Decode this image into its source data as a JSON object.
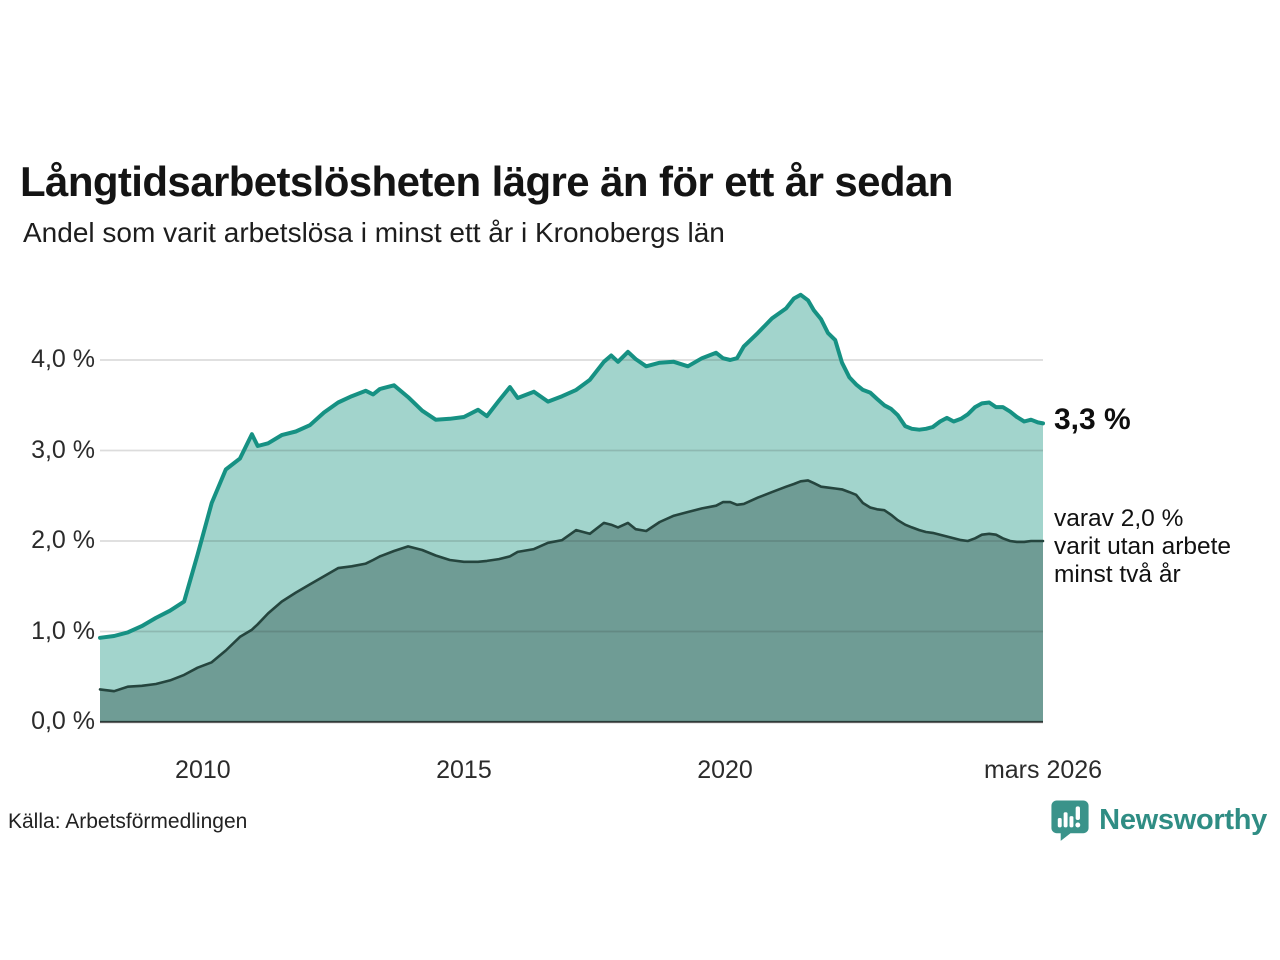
{
  "header": {
    "title": "Långtidsarbetslösheten lägre än för ett år sedan",
    "subtitle": "Andel som varit arbetslösa i minst ett år i Kronobergs län"
  },
  "chart_data": {
    "type": "area",
    "title": "Långtidsarbetslösheten lägre än för ett år sedan",
    "subtitle": "Andel som varit arbetslösa i minst ett år i Kronobergs län",
    "x": [
      2008.03,
      2008.3,
      2008.56,
      2008.83,
      2009.1,
      2009.37,
      2009.64,
      2009.9,
      2010.17,
      2010.44,
      2010.71,
      2010.94,
      2011.05,
      2011.25,
      2011.51,
      2011.78,
      2012.05,
      2012.32,
      2012.59,
      2012.85,
      2013.12,
      2013.26,
      2013.39,
      2013.66,
      2013.93,
      2014.2,
      2014.46,
      2014.73,
      2015.0,
      2015.27,
      2015.44,
      2015.67,
      2015.88,
      2016.03,
      2016.34,
      2016.61,
      2016.88,
      2017.15,
      2017.41,
      2017.68,
      2017.82,
      2017.95,
      2018.14,
      2018.29,
      2018.49,
      2018.75,
      2019.02,
      2019.29,
      2019.56,
      2019.83,
      2019.96,
      2020.1,
      2020.23,
      2020.36,
      2020.63,
      2020.9,
      2021.17,
      2021.32,
      2021.45,
      2021.59,
      2021.7,
      2021.84,
      2021.97,
      2022.11,
      2022.24,
      2022.38,
      2022.51,
      2022.64,
      2022.78,
      2022.91,
      2023.05,
      2023.18,
      2023.31,
      2023.45,
      2023.58,
      2023.72,
      2023.85,
      2023.98,
      2024.12,
      2024.25,
      2024.38,
      2024.52,
      2024.65,
      2024.79,
      2024.92,
      2025.06,
      2025.19,
      2025.32,
      2025.46,
      2025.59,
      2025.73,
      2025.86,
      2025.99,
      2026.09
    ],
    "series": [
      {
        "name": "Andel som varit arbetslösa minst ett år",
        "fill": "#a2d4cc",
        "color": "#169183",
        "width": 4,
        "values": [
          0.93,
          0.95,
          0.99,
          1.06,
          1.15,
          1.23,
          1.33,
          1.85,
          2.42,
          2.79,
          2.91,
          3.18,
          3.05,
          3.08,
          3.17,
          3.21,
          3.28,
          3.42,
          3.53,
          3.6,
          3.66,
          3.62,
          3.68,
          3.72,
          3.59,
          3.44,
          3.34,
          3.35,
          3.37,
          3.45,
          3.38,
          3.55,
          3.7,
          3.58,
          3.65,
          3.54,
          3.6,
          3.67,
          3.78,
          3.98,
          4.05,
          3.98,
          4.09,
          4.01,
          3.93,
          3.97,
          3.98,
          3.93,
          4.02,
          4.08,
          4.02,
          4.0,
          4.02,
          4.15,
          4.3,
          4.46,
          4.57,
          4.68,
          4.72,
          4.66,
          4.55,
          4.45,
          4.3,
          4.22,
          3.97,
          3.81,
          3.73,
          3.67,
          3.64,
          3.57,
          3.5,
          3.46,
          3.39,
          3.27,
          3.24,
          3.23,
          3.24,
          3.26,
          3.32,
          3.36,
          3.32,
          3.35,
          3.4,
          3.48,
          3.52,
          3.53,
          3.48,
          3.48,
          3.43,
          3.37,
          3.32,
          3.34,
          3.31,
          3.3
        ]
      },
      {
        "name": "varav varit utan arbete minst två år",
        "fill": "#6f9c95",
        "color": "#25453e",
        "width": 2.6,
        "values": [
          0.36,
          0.34,
          0.39,
          0.4,
          0.42,
          0.46,
          0.52,
          0.6,
          0.66,
          0.79,
          0.94,
          1.02,
          1.08,
          1.2,
          1.33,
          1.43,
          1.52,
          1.61,
          1.7,
          1.72,
          1.75,
          1.79,
          1.83,
          1.89,
          1.94,
          1.9,
          1.84,
          1.79,
          1.77,
          1.77,
          1.78,
          1.8,
          1.83,
          1.88,
          1.91,
          1.98,
          2.01,
          2.12,
          2.08,
          2.2,
          2.18,
          2.15,
          2.2,
          2.13,
          2.11,
          2.21,
          2.28,
          2.32,
          2.36,
          2.39,
          2.43,
          2.43,
          2.4,
          2.41,
          2.48,
          2.54,
          2.6,
          2.63,
          2.66,
          2.67,
          2.64,
          2.6,
          2.59,
          2.58,
          2.57,
          2.54,
          2.51,
          2.42,
          2.37,
          2.35,
          2.34,
          2.29,
          2.23,
          2.18,
          2.15,
          2.12,
          2.1,
          2.09,
          2.07,
          2.05,
          2.03,
          2.01,
          2.0,
          2.03,
          2.07,
          2.08,
          2.07,
          2.03,
          2.0,
          1.99,
          1.99,
          2.0,
          2.0,
          2.0
        ]
      }
    ],
    "xlim": [
      2008.03,
      2026.09
    ],
    "ylim": [
      0,
      4.95
    ],
    "grid": true,
    "legend_position": "none",
    "yticks": [
      {
        "v": 0,
        "label": "0,0 %"
      },
      {
        "v": 1,
        "label": "1,0 %"
      },
      {
        "v": 2,
        "label": "2,0 %"
      },
      {
        "v": 3,
        "label": "3,0 %"
      },
      {
        "v": 4,
        "label": "4,0 %"
      }
    ],
    "xticks": [
      {
        "v": 2010,
        "label": "2010"
      },
      {
        "v": 2015,
        "label": "2015"
      },
      {
        "v": 2020,
        "label": "2020"
      },
      {
        "v": 2026.09,
        "label": "mars 2026"
      }
    ],
    "annotations": {
      "end_value": "3,3 %",
      "sub_lines": [
        "varav 2,0 %",
        "varit utan arbete",
        "minst två år"
      ]
    }
  },
  "footer": {
    "source": "Källa: Arbetsförmedlingen",
    "brand": "Newsworthy"
  },
  "colors": {
    "accent_line": "#169183",
    "accent_fill": "#a2d4cc",
    "dark_line": "#25453e",
    "dark_fill": "#6f9c95",
    "brand": "#2f8d84",
    "gridline": "#dcdcdc"
  }
}
